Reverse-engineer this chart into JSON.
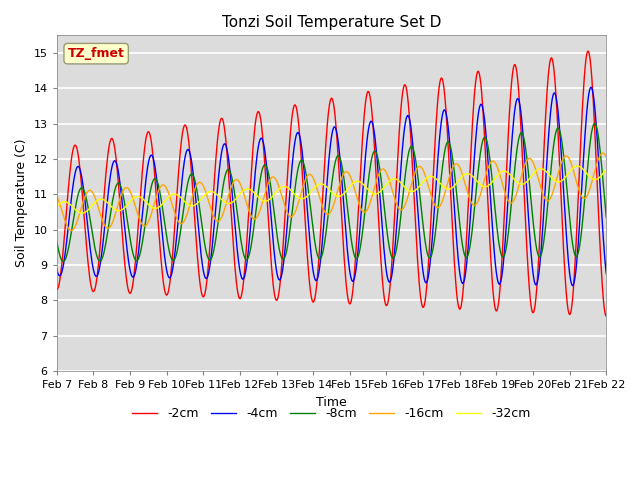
{
  "title": "Tonzi Soil Temperature Set D",
  "xlabel": "Time",
  "ylabel": "Soil Temperature (C)",
  "ylim": [
    6.0,
    15.5
  ],
  "yticks": [
    6.0,
    7.0,
    8.0,
    9.0,
    10.0,
    11.0,
    12.0,
    13.0,
    14.0,
    15.0
  ],
  "series_colors": [
    "red",
    "blue",
    "green",
    "orange",
    "yellow"
  ],
  "series_labels": [
    "-2cm",
    "-4cm",
    "-8cm",
    "-16cm",
    "-32cm"
  ],
  "plot_bg_color": "#dcdcdc",
  "annotation_text": "TZ_fmet",
  "annotation_color": "#cc0000",
  "annotation_bg": "#ffffcc",
  "n_points": 720,
  "figsize": [
    6.4,
    4.8
  ],
  "dpi": 100
}
